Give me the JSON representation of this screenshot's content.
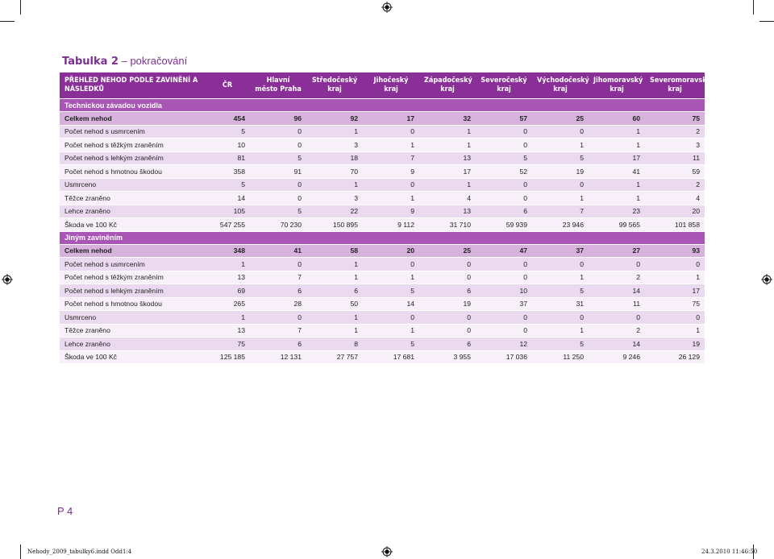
{
  "title": {
    "bold": "Tabulka 2",
    "rest": " – pokračování"
  },
  "header": [
    "PŘEHLED NEHOD PODLE ZAVINĚNÍ A NÁSLEDKŮ",
    "ČR",
    "Hlavní město Praha",
    "Středočeský kraj",
    "Jihočeský kraj",
    "Západočeský kraj",
    "Severočeský kraj",
    "Východočeský kraj",
    "Jihomoravský kraj",
    "Severomoravský kraj"
  ],
  "rows": [
    {
      "kind": "sec",
      "cells": [
        "Technickou závadou vozidla"
      ]
    },
    {
      "kind": "tot",
      "cells": [
        "Celkem nehod",
        "454",
        "96",
        "92",
        "17",
        "32",
        "57",
        "25",
        "60",
        "75"
      ]
    },
    {
      "kind": "odd",
      "cells": [
        "Počet nehod s usmrcením",
        "5",
        "0",
        "1",
        "0",
        "1",
        "0",
        "0",
        "1",
        "2"
      ]
    },
    {
      "kind": "even",
      "cells": [
        "Počet nehod s těžkým zraněním",
        "10",
        "0",
        "3",
        "1",
        "1",
        "0",
        "1",
        "1",
        "3"
      ]
    },
    {
      "kind": "odd",
      "cells": [
        "Počet nehod s lehkým zraněním",
        "81",
        "5",
        "18",
        "7",
        "13",
        "5",
        "5",
        "17",
        "11"
      ]
    },
    {
      "kind": "even",
      "cells": [
        "Počet nehod s hmotnou škodou",
        "358",
        "91",
        "70",
        "9",
        "17",
        "52",
        "19",
        "41",
        "59"
      ]
    },
    {
      "kind": "odd",
      "cells": [
        "Usmrceno",
        "5",
        "0",
        "1",
        "0",
        "1",
        "0",
        "0",
        "1",
        "2"
      ]
    },
    {
      "kind": "even",
      "cells": [
        "Těžce zraněno",
        "14",
        "0",
        "3",
        "1",
        "4",
        "0",
        "1",
        "1",
        "4"
      ]
    },
    {
      "kind": "odd",
      "cells": [
        "Lehce zraněno",
        "105",
        "5",
        "22",
        "9",
        "13",
        "6",
        "7",
        "23",
        "20"
      ]
    },
    {
      "kind": "even",
      "cells": [
        "Škoda ve 100 Kč",
        "547 255",
        "70 230",
        "150 895",
        "9 112",
        "31 710",
        "59 939",
        "23 946",
        "99 565",
        "101 858"
      ]
    },
    {
      "kind": "sec",
      "cells": [
        "Jiným zaviněním"
      ]
    },
    {
      "kind": "tot",
      "cells": [
        "Celkem nehod",
        "348",
        "41",
        "58",
        "20",
        "25",
        "47",
        "37",
        "27",
        "93"
      ]
    },
    {
      "kind": "odd",
      "cells": [
        "Počet nehod s usmrcením",
        "1",
        "0",
        "1",
        "0",
        "0",
        "0",
        "0",
        "0",
        "0"
      ]
    },
    {
      "kind": "even",
      "cells": [
        "Počet nehod s těžkým zraněním",
        "13",
        "7",
        "1",
        "1",
        "0",
        "0",
        "1",
        "2",
        "1"
      ]
    },
    {
      "kind": "odd",
      "cells": [
        "Počet nehod s lehkým zraněním",
        "69",
        "6",
        "6",
        "5",
        "6",
        "10",
        "5",
        "14",
        "17"
      ]
    },
    {
      "kind": "even",
      "cells": [
        "Počet nehod s hmotnou škodou",
        "265",
        "28",
        "50",
        "14",
        "19",
        "37",
        "31",
        "11",
        "75"
      ]
    },
    {
      "kind": "odd",
      "cells": [
        "Usmrceno",
        "1",
        "0",
        "1",
        "0",
        "0",
        "0",
        "0",
        "0",
        "0"
      ]
    },
    {
      "kind": "even",
      "cells": [
        "Těžce zraněno",
        "13",
        "7",
        "1",
        "1",
        "0",
        "0",
        "1",
        "2",
        "1"
      ]
    },
    {
      "kind": "odd",
      "cells": [
        "Lehce zraněno",
        "75",
        "6",
        "8",
        "5",
        "6",
        "12",
        "5",
        "14",
        "19"
      ]
    },
    {
      "kind": "even",
      "cells": [
        "Škoda ve 100 Kč",
        "125 185",
        "12 131",
        "27 757",
        "17 681",
        "3 955",
        "17 036",
        "11 250",
        "9 246",
        "26 129"
      ]
    }
  ],
  "page_number": "P 4",
  "footer": {
    "left": "Nehody_2009_tabulky6.indd  Odd1:4",
    "right": "24.3.2010  11:46:50"
  }
}
